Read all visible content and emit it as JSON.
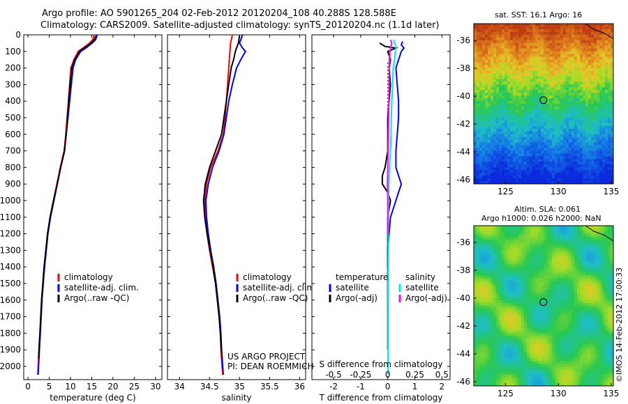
{
  "title": {
    "line1": "Argo profile: AO 5901265_204 02-Feb-2012 20120204_108 40.288S 128.588E",
    "line2": "Climatology: CARS2009. Satellite-adjusted climatology: synTS_20120204.nc (1.1d later)"
  },
  "side_text": {
    "project_line1": "US ARGO PROJECT",
    "project_line2": "PI: DEAN ROEMMICH",
    "timestamp": "©IMOS 14-Feb-2012 17:00:33",
    "sst_title": "sat. SST: 16.1 Argo: 16",
    "sla_title1": "Altim. SLA: 0.061",
    "sla_title2": "Argo h1000: 0.026 h2000: NaN"
  },
  "colors": {
    "climatology": "#ff0000",
    "satellite": "#0000ff",
    "argo": "#000000",
    "sat_salinity": "#00e5ee",
    "argo_salinity": "#ff00ff"
  },
  "chart_data": [
    {
      "id": "temperature",
      "type": "line",
      "xlabel": "temperature (deg C)",
      "xlim": [
        -1,
        31.5
      ],
      "xticks": [
        0,
        5,
        10,
        15,
        20,
        25,
        30
      ],
      "ylim": [
        2080,
        0
      ],
      "yticks": [
        0,
        100,
        200,
        300,
        400,
        500,
        600,
        700,
        800,
        900,
        1000,
        1100,
        1200,
        1300,
        1400,
        1500,
        1600,
        1700,
        1800,
        1900,
        2000
      ],
      "legend": [
        "climatology",
        "satellite-adj. clim.",
        "Argo(..raw -QC)"
      ],
      "series": [
        {
          "name": "climatology",
          "color": "#ff0000",
          "depth": [
            0,
            30,
            50,
            80,
            100,
            150,
            200,
            300,
            400,
            500,
            600,
            700,
            800,
            900,
            1000,
            1100,
            1200,
            1300,
            1400,
            1500,
            1600,
            1700,
            1800,
            1900,
            2000,
            2050
          ],
          "values": [
            15.6,
            15.2,
            14.5,
            12.9,
            11.8,
            10.8,
            10.1,
            9.8,
            9.5,
            9.2,
            8.9,
            8.5,
            7.6,
            6.8,
            6.0,
            5.2,
            4.6,
            4.2,
            3.8,
            3.5,
            3.2,
            3.0,
            2.8,
            2.6,
            2.4,
            2.3
          ]
        },
        {
          "name": "satellite-adj. clim.",
          "color": "#0000ff",
          "depth": [
            0,
            30,
            50,
            80,
            100,
            150,
            200,
            300,
            400,
            500,
            600,
            700,
            800,
            900,
            1000,
            1100,
            1200,
            1300,
            1400,
            1500,
            1600,
            1700,
            1800,
            1900,
            2000,
            2050
          ],
          "values": [
            16.3,
            15.9,
            15.1,
            13.6,
            12.4,
            11.2,
            10.6,
            10.2,
            9.8,
            9.4,
            9.0,
            8.6,
            7.7,
            6.9,
            6.1,
            5.3,
            4.7,
            4.3,
            3.9,
            3.6,
            3.3,
            3.1,
            2.9,
            2.7,
            2.5,
            2.4
          ]
        },
        {
          "name": "Argo(..raw -QC)",
          "color": "#000000",
          "depth": [
            5,
            30,
            50,
            80,
            100,
            150,
            200,
            300,
            400,
            500,
            600,
            700,
            800,
            900,
            1000,
            1100,
            1200,
            1300,
            1400,
            1500,
            1600,
            1700,
            1800,
            1900,
            1950
          ],
          "values": [
            16.0,
            15.6,
            14.8,
            13.2,
            12.1,
            11.0,
            10.3,
            9.9,
            9.6,
            9.3,
            9.0,
            8.6,
            7.7,
            6.9,
            6.0,
            5.2,
            4.6,
            4.2,
            3.8,
            3.5,
            3.2,
            3.0,
            2.8,
            2.6,
            2.5
          ]
        }
      ]
    },
    {
      "id": "salinity",
      "type": "line",
      "xlabel": "salinity",
      "xlim": [
        33.8,
        36.1
      ],
      "xticks": [
        34,
        34.5,
        35,
        35.5,
        36
      ],
      "ylim": [
        2080,
        0
      ],
      "legend": [
        "climatology",
        "satellite-adj. clim.",
        "Argo(..raw -QC)"
      ],
      "series": [
        {
          "name": "climatology",
          "color": "#ff0000",
          "depth": [
            0,
            50,
            100,
            200,
            300,
            400,
            500,
            600,
            700,
            800,
            900,
            1000,
            1100,
            1200,
            1300,
            1400,
            1500,
            1600,
            1700,
            1800,
            1900,
            2000,
            2050
          ],
          "values": [
            34.88,
            34.85,
            34.84,
            34.82,
            34.8,
            34.78,
            34.76,
            34.73,
            34.64,
            34.52,
            34.45,
            34.42,
            34.43,
            34.46,
            34.5,
            34.55,
            34.6,
            34.63,
            34.66,
            34.68,
            34.69,
            34.71,
            34.72
          ]
        },
        {
          "name": "satellite-adj. clim.",
          "color": "#0000ff",
          "depth": [
            0,
            50,
            80,
            100,
            150,
            200,
            300,
            400,
            500,
            600,
            700,
            800,
            900,
            1000,
            1100,
            1200,
            1300,
            1400,
            1500,
            1600,
            1700,
            1800,
            1900,
            2000,
            2050
          ],
          "values": [
            35.05,
            35.0,
            35.05,
            35.1,
            35.02,
            34.95,
            34.88,
            34.82,
            34.78,
            34.74,
            34.66,
            34.55,
            34.48,
            34.44,
            34.45,
            34.48,
            34.52,
            34.57,
            34.61,
            34.64,
            34.67,
            34.69,
            34.7,
            34.72,
            34.73
          ]
        },
        {
          "name": "Argo(..raw -QC)",
          "color": "#000000",
          "depth": [
            5,
            50,
            80,
            100,
            150,
            200,
            300,
            400,
            500,
            600,
            700,
            800,
            900,
            1000,
            1100,
            1200,
            1300,
            1400,
            1500,
            1600,
            1700,
            1800,
            1900,
            1950
          ],
          "values": [
            35.0,
            34.98,
            34.95,
            34.93,
            34.9,
            34.86,
            34.82,
            34.78,
            34.74,
            34.7,
            34.6,
            34.5,
            34.43,
            34.4,
            34.42,
            34.46,
            34.51,
            34.56,
            34.6,
            34.63,
            34.66,
            34.68,
            34.7,
            34.71
          ]
        }
      ]
    },
    {
      "id": "difference",
      "type": "line",
      "xlabel": "T difference from climatology",
      "xlabel2": "S difference from climatology",
      "xlim": [
        -2.8,
        2.3
      ],
      "xticks": [
        -2,
        -1,
        0,
        1,
        2
      ],
      "xticks_s": [
        "-0.5",
        "-0.25",
        "0",
        "0.25",
        "0.5"
      ],
      "ylim": [
        2080,
        0
      ],
      "legend_headers": [
        "temperature",
        "salinity"
      ],
      "legend": [
        "satellite",
        "Argo(-adj)",
        "satellite",
        "Argo(-adj)"
      ],
      "series": [
        {
          "name": "satellite",
          "variable": "temperature",
          "color": "#0000ff",
          "depth": [
            40,
            60,
            80,
            100,
            150,
            200,
            300,
            400,
            500,
            600,
            700,
            800,
            850,
            900,
            950,
            1000,
            1100,
            1200,
            1300,
            1400
          ],
          "values": [
            0.55,
            0.5,
            0.6,
            0.5,
            0.4,
            0.3,
            0.35,
            0.4,
            0.4,
            0.35,
            0.3,
            0.3,
            0.4,
            0.5,
            0.4,
            0.3,
            0.1,
            0.05,
            0.0,
            0.0
          ]
        },
        {
          "name": "Argo(-adj)",
          "variable": "temperature",
          "color": "#000000",
          "depth": [
            50,
            70,
            80,
            100,
            150,
            200,
            300,
            400,
            500,
            600,
            700,
            800,
            850,
            900,
            950,
            1000,
            1100,
            1200,
            1400,
            1600,
            1800,
            1900
          ],
          "values": [
            -0.3,
            -0.1,
            0.3,
            0.0,
            0.1,
            0.05,
            0.1,
            0.05,
            0.0,
            0.0,
            0.0,
            -0.1,
            -0.2,
            -0.2,
            0.0,
            0.1,
            0.0,
            0.0,
            0.0,
            0.0,
            0.0,
            0.0
          ]
        },
        {
          "name": "satellite",
          "variable": "salinity",
          "color": "#00e5ee",
          "depth": [
            30,
            50,
            70,
            100,
            150,
            200,
            300,
            400,
            500,
            600,
            700,
            800,
            900,
            1000,
            1200,
            1500,
            1800,
            2000,
            2050
          ],
          "values": [
            0.22,
            0.25,
            0.3,
            0.28,
            0.25,
            0.2,
            0.18,
            0.15,
            0.13,
            0.12,
            0.1,
            0.06,
            0.04,
            0.03,
            0.02,
            0.01,
            0.01,
            0.01,
            0.01
          ]
        },
        {
          "name": "Argo(-adj)",
          "variable": "salinity",
          "color": "#ff00ff",
          "depth": [
            30,
            50,
            70,
            100,
            150,
            200,
            300,
            400,
            500,
            600,
            700,
            800,
            900,
            1000,
            1100,
            1200
          ],
          "values": [
            0.1,
            0.15,
            0.12,
            0.08,
            0.06,
            0.05,
            0.05,
            0.04,
            0.03,
            0.02,
            0.01,
            0.0,
            -0.01,
            0.0,
            0.0,
            0.0
          ]
        }
      ]
    },
    {
      "id": "sst_map",
      "type": "heatmap",
      "title": "sat. SST: 16.1 Argo: 16",
      "xlim": [
        122,
        135.2
      ],
      "ylim": [
        -46.3,
        -34.8
      ],
      "xticks": [
        125,
        130,
        135
      ],
      "yticks": [
        -36,
        -38,
        -40,
        -42,
        -44,
        -46
      ],
      "profile_location": [
        128.588,
        -40.288
      ]
    },
    {
      "id": "sla_map",
      "type": "heatmap",
      "title": "Altim. SLA: 0.061",
      "subtitle": "Argo h1000: 0.026 h2000: NaN",
      "xlim": [
        122,
        135.2
      ],
      "ylim": [
        -46.3,
        -34.8
      ],
      "xticks": [
        125,
        130,
        135
      ],
      "yticks": [
        -36,
        -38,
        -40,
        -42,
        -44,
        -46
      ],
      "profile_location": [
        128.588,
        -40.288
      ]
    }
  ]
}
